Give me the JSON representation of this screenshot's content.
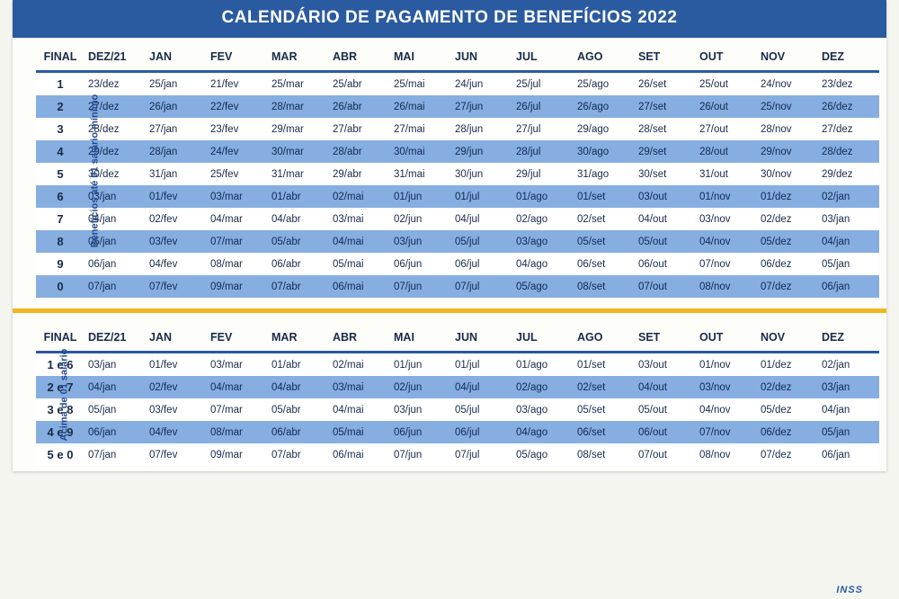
{
  "title": "CALENDÁRIO DE PAGAMENTO DE BENEFÍCIOS 2022",
  "colors": {
    "title_bg": "#2a5aa0",
    "header_underline": "#2a5aa0",
    "row_alt_bg": "#86aee0",
    "row_bg": "#ffffff",
    "divider": "#f3b61f",
    "text": "#1a2a4a",
    "side_label": "#264a8a"
  },
  "typography": {
    "title_fontsize": 19,
    "header_fontsize": 12.5,
    "cell_fontsize": 11.5,
    "final_col_fontsize": 13,
    "side_label_fontsize": 11
  },
  "columns": [
    "FINAL",
    "DEZ/21",
    "JAN",
    "FEV",
    "MAR",
    "ABR",
    "MAI",
    "JUN",
    "JUL",
    "AGO",
    "SET",
    "OUT",
    "NOV",
    "DEZ"
  ],
  "table1": {
    "side_label": "Benefícios até 01 salário mínimo",
    "rows": [
      [
        "1",
        "23/dez",
        "25/jan",
        "21/fev",
        "25/mar",
        "25/abr",
        "25/mai",
        "24/jun",
        "25/jul",
        "25/ago",
        "26/set",
        "25/out",
        "24/nov",
        "23/dez"
      ],
      [
        "2",
        "27/dez",
        "26/jan",
        "22/fev",
        "28/mar",
        "26/abr",
        "26/mai",
        "27/jun",
        "26/jul",
        "26/ago",
        "27/set",
        "26/out",
        "25/nov",
        "26/dez"
      ],
      [
        "3",
        "28/dez",
        "27/jan",
        "23/fev",
        "29/mar",
        "27/abr",
        "27/mai",
        "28/jun",
        "27/jul",
        "29/ago",
        "28/set",
        "27/out",
        "28/nov",
        "27/dez"
      ],
      [
        "4",
        "29/dez",
        "28/jan",
        "24/fev",
        "30/mar",
        "28/abr",
        "30/mai",
        "29/jun",
        "28/jul",
        "30/ago",
        "29/set",
        "28/out",
        "29/nov",
        "28/dez"
      ],
      [
        "5",
        "30/dez",
        "31/jan",
        "25/fev",
        "31/mar",
        "29/abr",
        "31/mai",
        "30/jun",
        "29/jul",
        "31/ago",
        "30/set",
        "31/out",
        "30/nov",
        "29/dez"
      ],
      [
        "6",
        "03/jan",
        "01/fev",
        "03/mar",
        "01/abr",
        "02/mai",
        "01/jun",
        "01/jul",
        "01/ago",
        "01/set",
        "03/out",
        "01/nov",
        "01/dez",
        "02/jan"
      ],
      [
        "7",
        "04/jan",
        "02/fev",
        "04/mar",
        "04/abr",
        "03/mai",
        "02/jun",
        "04/jul",
        "02/ago",
        "02/set",
        "04/out",
        "03/nov",
        "02/dez",
        "03/jan"
      ],
      [
        "8",
        "05/jan",
        "03/fev",
        "07/mar",
        "05/abr",
        "04/mai",
        "03/jun",
        "05/jul",
        "03/ago",
        "05/set",
        "05/out",
        "04/nov",
        "05/dez",
        "04/jan"
      ],
      [
        "9",
        "06/jan",
        "04/fev",
        "08/mar",
        "06/abr",
        "05/mai",
        "06/jun",
        "06/jul",
        "04/ago",
        "06/set",
        "06/out",
        "07/nov",
        "06/dez",
        "05/jan"
      ],
      [
        "0",
        "07/jan",
        "07/fev",
        "09/mar",
        "07/abr",
        "06/mai",
        "07/jun",
        "07/jul",
        "05/ago",
        "08/set",
        "07/out",
        "08/nov",
        "07/dez",
        "06/jan"
      ]
    ]
  },
  "table2": {
    "side_label": "Acima de 01 salário",
    "rows": [
      [
        "1 e 6",
        "03/jan",
        "01/fev",
        "03/mar",
        "01/abr",
        "02/mai",
        "01/jun",
        "01/jul",
        "01/ago",
        "01/set",
        "03/out",
        "01/nov",
        "01/dez",
        "02/jan"
      ],
      [
        "2 e 7",
        "04/jan",
        "02/fev",
        "04/mar",
        "04/abr",
        "03/mai",
        "02/jun",
        "04/jul",
        "02/ago",
        "02/set",
        "04/out",
        "03/nov",
        "02/dez",
        "03/jan"
      ],
      [
        "3 e 8",
        "05/jan",
        "03/fev",
        "07/mar",
        "05/abr",
        "04/mai",
        "03/jun",
        "05/jul",
        "03/ago",
        "05/set",
        "05/out",
        "04/nov",
        "05/dez",
        "04/jan"
      ],
      [
        "4 e 9",
        "06/jan",
        "04/fev",
        "08/mar",
        "06/abr",
        "05/mai",
        "06/jun",
        "06/jul",
        "04/ago",
        "06/set",
        "06/out",
        "07/nov",
        "06/dez",
        "05/jan"
      ],
      [
        "5 e 0",
        "07/jan",
        "07/fev",
        "09/mar",
        "07/abr",
        "06/mai",
        "07/jun",
        "07/jul",
        "05/ago",
        "08/set",
        "07/out",
        "08/nov",
        "07/dez",
        "06/jan"
      ]
    ]
  },
  "footer_brand": "INSS"
}
